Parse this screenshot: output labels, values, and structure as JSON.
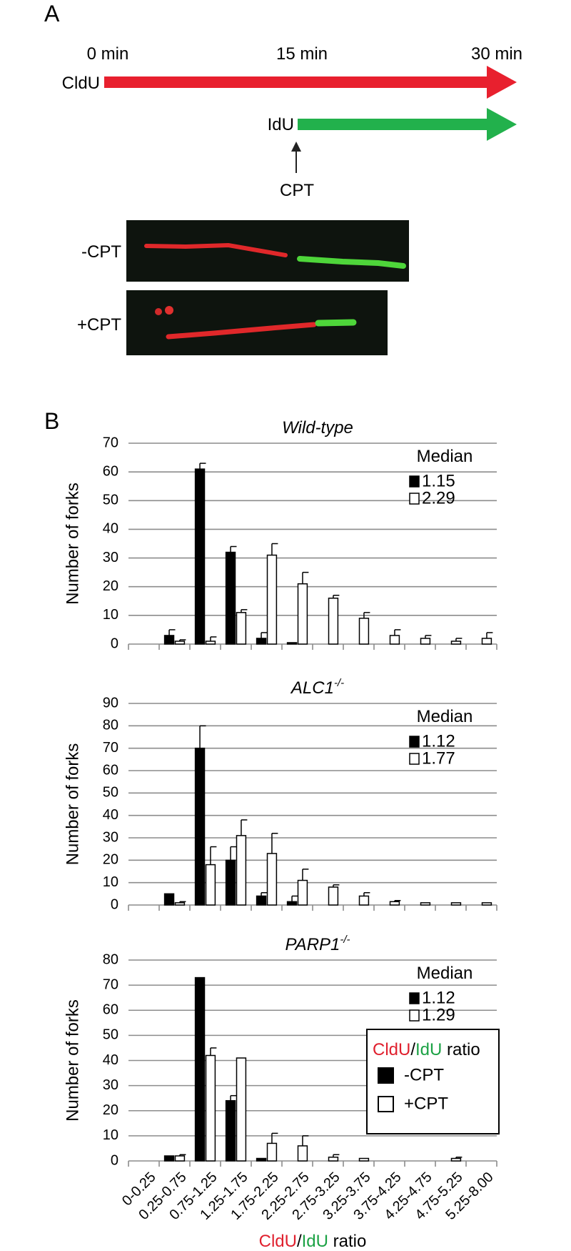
{
  "panel_a": {
    "label": "A",
    "times": [
      "0 min",
      "15 min",
      "30 min"
    ],
    "first_label": "CldU",
    "second_label": "IdU",
    "treatment": "CPT",
    "images": [
      "-CPT",
      "+CPT"
    ]
  },
  "panel_b_label": "B",
  "chart_data": [
    {
      "type": "bar",
      "title": "Wild-type",
      "y_label": "Number of forks",
      "median_title": "Median",
      "ylim": [
        0,
        70
      ],
      "yticks": [
        0,
        10,
        20,
        30,
        40,
        50,
        60,
        70
      ],
      "grid": true,
      "series": [
        {
          "color": "#000000",
          "median": 1.15,
          "values": [
            0,
            3,
            61,
            32,
            2,
            0.5,
            0,
            0,
            0,
            0,
            0,
            0
          ],
          "errors": [
            null,
            2,
            2,
            2,
            2,
            null,
            null,
            null,
            null,
            null,
            null,
            null
          ]
        },
        {
          "color": "#ffffff",
          "median": 2.29,
          "values": [
            0,
            1,
            1,
            11,
            31,
            21,
            16,
            9,
            3,
            2,
            1,
            2
          ],
          "errors": [
            null,
            0.5,
            1.5,
            1,
            4,
            4,
            1,
            2,
            2,
            1,
            1,
            2
          ]
        }
      ]
    },
    {
      "type": "bar",
      "title": "ALC1",
      "title_sup": "-/-",
      "y_label": "Number of forks",
      "median_title": "Median",
      "ylim": [
        0,
        90
      ],
      "yticks": [
        0,
        10,
        20,
        30,
        40,
        50,
        60,
        70,
        80,
        90
      ],
      "grid": true,
      "series": [
        {
          "color": "#000000",
          "median": 1.12,
          "values": [
            0,
            5,
            70,
            20,
            4,
            1.5,
            0,
            0,
            0,
            0,
            0,
            0
          ],
          "errors": [
            null,
            null,
            10,
            6,
            1.5,
            2.5,
            null,
            null,
            null,
            null,
            null,
            null
          ]
        },
        {
          "color": "#ffffff",
          "median": 1.77,
          "values": [
            0,
            1,
            18,
            31,
            23,
            11,
            8,
            4,
            1.5,
            1,
            1,
            1
          ],
          "errors": [
            null,
            0.5,
            8,
            7,
            9,
            5,
            1,
            1.5,
            0.5,
            null,
            null,
            null
          ]
        }
      ]
    },
    {
      "type": "bar",
      "title": "PARP1",
      "title_sup": "-/-",
      "y_label": "Number of forks",
      "median_title": "Median",
      "categories": [
        "0-0.25",
        "0.25-0.75",
        "0.75-1.25",
        "1.25-1.75",
        "1.75-2.25",
        "2.25-2.75",
        "2.75-3.25",
        "3.25-3.75",
        "3.75-4.25",
        "4.25-4.75",
        "4.75-5.25",
        "5.25-8.00"
      ],
      "x_label": [
        {
          "text": "CldU",
          "color": "#e0202e"
        },
        {
          "text": "/"
        },
        {
          "text": "IdU",
          "color": "#1ca245"
        },
        {
          "text": " ratio"
        }
      ],
      "legend_title": [
        {
          "text": "CldU",
          "color": "#e0202e"
        },
        {
          "text": "/"
        },
        {
          "text": "IdU",
          "color": "#1ca245"
        },
        {
          "text": " ratio"
        }
      ],
      "ylim": [
        0,
        80
      ],
      "yticks": [
        0,
        10,
        20,
        30,
        40,
        50,
        60,
        70,
        80
      ],
      "grid": true,
      "series": [
        {
          "name": "-CPT",
          "color": "#000000",
          "median": 1.12,
          "values": [
            0,
            2,
            73,
            24,
            1,
            0,
            0,
            0,
            0,
            0,
            0,
            0
          ],
          "errors": [
            null,
            null,
            null,
            2,
            null,
            null,
            null,
            null,
            null,
            null,
            null,
            null
          ]
        },
        {
          "name": "+CPT",
          "color": "#ffffff",
          "median": 1.29,
          "values": [
            0,
            2,
            42,
            41,
            7,
            6,
            1.5,
            1,
            0,
            0,
            1,
            0
          ],
          "errors": [
            null,
            0.5,
            3,
            null,
            4,
            4,
            1,
            null,
            null,
            null,
            0.5,
            null
          ]
        }
      ]
    }
  ]
}
